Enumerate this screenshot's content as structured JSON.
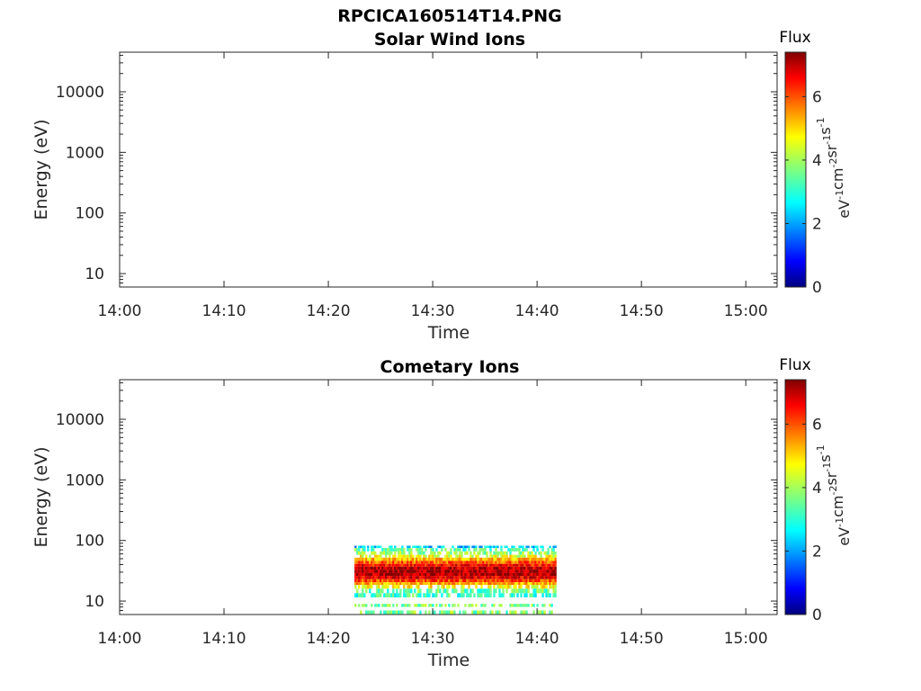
{
  "figure_title": "RPCICA160514T14.PNG",
  "colorbar": {
    "title": "Flux",
    "unit_main": [
      "eV",
      "cm",
      "sr",
      "s"
    ],
    "unit_exp": "-1",
    "unit_exp2": "-2",
    "ticks": [
      "0",
      "2",
      "4",
      "6"
    ],
    "range": [
      0,
      7.4
    ],
    "colormap": "jet"
  },
  "chart_data": [
    {
      "type": "heatmap",
      "title": "Solar Wind Ions",
      "xlabel": "Time",
      "ylabel": "Energy (eV)",
      "xticks": [
        "14:00",
        "14:10",
        "14:20",
        "14:30",
        "14:40",
        "14:50",
        "15:00"
      ],
      "yticks": [
        "10",
        "100",
        "1000",
        "10000"
      ],
      "xlim": [
        "14:00",
        "15:03"
      ],
      "ylim": [
        6,
        45000
      ],
      "yscale": "log",
      "grid": false,
      "bands": []
    },
    {
      "type": "heatmap",
      "title": "Cometary Ions",
      "xlabel": "Time",
      "ylabel": "Energy (eV)",
      "xticks": [
        "14:00",
        "14:10",
        "14:20",
        "14:30",
        "14:40",
        "14:50",
        "15:00"
      ],
      "yticks": [
        "10",
        "100",
        "1000",
        "10000"
      ],
      "xlim": [
        "14:00",
        "15:03"
      ],
      "ylim": [
        6,
        45000
      ],
      "yscale": "log",
      "grid": false,
      "time_range": [
        "14:22:30",
        "14:41:50"
      ],
      "bands": [
        {
          "e_low": 75,
          "e_high": 82,
          "flux": 2.4
        },
        {
          "e_low": 66,
          "e_high": 75,
          "flux": 3.3
        },
        {
          "e_low": 58,
          "e_high": 66,
          "flux": 3.8
        },
        {
          "e_low": 52,
          "e_high": 58,
          "flux": 4.5
        },
        {
          "e_low": 46,
          "e_high": 52,
          "flux": 5.1
        },
        {
          "e_low": 41,
          "e_high": 46,
          "flux": 5.8
        },
        {
          "e_low": 37,
          "e_high": 41,
          "flux": 6.4
        },
        {
          "e_low": 33,
          "e_high": 37,
          "flux": 6.9
        },
        {
          "e_low": 29,
          "e_high": 33,
          "flux": 7.1
        },
        {
          "e_low": 26,
          "e_high": 29,
          "flux": 7.0
        },
        {
          "e_low": 23,
          "e_high": 26,
          "flux": 6.6
        },
        {
          "e_low": 20.5,
          "e_high": 23,
          "flux": 6.0
        },
        {
          "e_low": 18.5,
          "e_high": 20.5,
          "flux": 5.2
        },
        {
          "e_low": 16,
          "e_high": 18.5,
          "flux": 4.6
        },
        {
          "e_low": 13.5,
          "e_high": 16,
          "flux": 3.5
        },
        {
          "e_low": 11.5,
          "e_high": 13.5,
          "flux": 3.2
        },
        {
          "e_low": 8,
          "e_high": 9,
          "flux": 3.6
        },
        {
          "e_low": 6,
          "e_high": 7,
          "flux": 3.7
        }
      ]
    }
  ]
}
